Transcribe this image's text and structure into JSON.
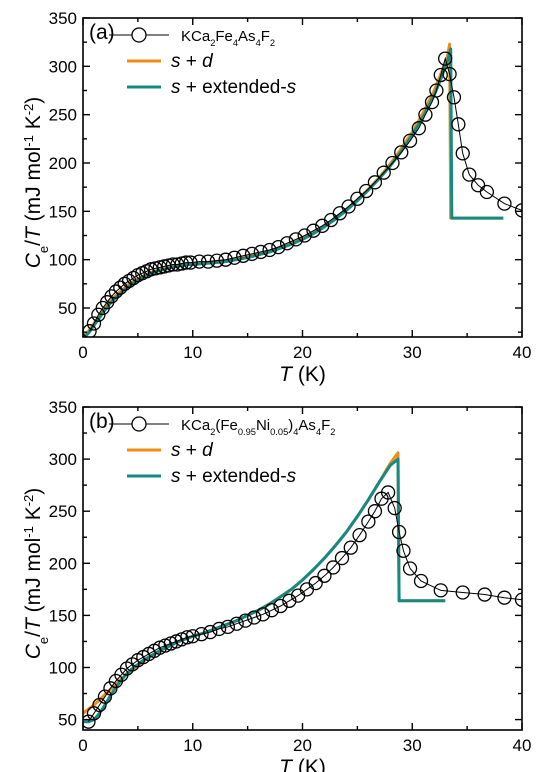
{
  "chart_data": [
    {
      "type": "line",
      "panel_label": "(a)",
      "xlabel": "T (K)",
      "ylabel": "Ce/T (mJ mol-1 K-2)",
      "xlim": [
        0,
        40
      ],
      "ylim": [
        20,
        350
      ],
      "xticks": [
        0,
        10,
        20,
        30,
        40
      ],
      "yticks": [
        50,
        100,
        150,
        200,
        250,
        300,
        350
      ],
      "legend_position": "top-left",
      "series": [
        {
          "name": "KCa2Fe4As4F2",
          "kind": "scatter-line",
          "color": "#000000",
          "x": [
            0.6,
            1.0,
            1.4,
            1.8,
            2.2,
            2.6,
            3.0,
            3.4,
            3.8,
            4.2,
            4.6,
            5.0,
            5.4,
            5.8,
            6.2,
            6.6,
            7.0,
            7.4,
            7.8,
            8.2,
            8.6,
            9.0,
            9.4,
            9.8,
            10.6,
            11.4,
            12.2,
            13.0,
            13.8,
            14.6,
            15.4,
            16.2,
            17.0,
            17.8,
            18.6,
            19.4,
            20.2,
            21.0,
            21.8,
            22.6,
            23.4,
            24.2,
            25.0,
            25.8,
            26.6,
            27.4,
            28.2,
            29.0,
            29.8,
            30.6,
            31.2,
            31.8,
            32.2,
            32.6,
            33.0,
            33.4,
            33.8,
            34.2,
            34.6,
            35.2,
            36.0,
            36.8,
            38.4,
            40.0
          ],
          "y": [
            26,
            34,
            43,
            50,
            56,
            62,
            67,
            71,
            75,
            78,
            81,
            84,
            86,
            88,
            90,
            91,
            92,
            93,
            94,
            95,
            95,
            96,
            97,
            97,
            98,
            98,
            99,
            100,
            102,
            104,
            106,
            108,
            110,
            113,
            117,
            121,
            125,
            130,
            135,
            141,
            148,
            155,
            163,
            171,
            180,
            190,
            200,
            211,
            223,
            236,
            250,
            263,
            275,
            291,
            308,
            292,
            268,
            240,
            210,
            188,
            177,
            170,
            158,
            151
          ]
        },
        {
          "name": "s + d",
          "kind": "line",
          "color": "#f08c14",
          "x": [
            0,
            0.5,
            1,
            1.5,
            2,
            2.5,
            3,
            3.5,
            4,
            4.5,
            5,
            5.5,
            6,
            6.5,
            7,
            7.5,
            8,
            8.5,
            9,
            9.5,
            10,
            11,
            12,
            13,
            14,
            15,
            16,
            17,
            18,
            19,
            20,
            21,
            22,
            23,
            24,
            25,
            26,
            27,
            28,
            29,
            30,
            31,
            32,
            32.6,
            33.2,
            33.4,
            33.5,
            34,
            35,
            36,
            37,
            38.3
          ],
          "y": [
            20,
            26,
            34,
            42,
            50,
            57,
            63,
            68,
            73,
            77,
            80,
            83,
            86,
            88,
            90,
            91,
            93,
            94,
            95,
            95,
            96,
            97,
            98,
            99,
            101,
            103,
            106,
            109,
            113,
            117,
            122,
            128,
            135,
            143,
            152,
            162,
            173,
            185,
            199,
            215,
            232,
            252,
            275,
            292,
            310,
            323,
            143,
            143,
            143,
            143,
            143,
            143
          ]
        },
        {
          "name": "s + extended-s",
          "kind": "line",
          "color": "#158a82",
          "x": [
            0,
            0.5,
            1,
            1.5,
            2,
            2.5,
            3,
            3.5,
            4,
            4.5,
            5,
            5.5,
            6,
            6.5,
            7,
            7.5,
            8,
            8.5,
            9,
            9.5,
            10,
            11,
            12,
            13,
            14,
            15,
            16,
            17,
            18,
            19,
            20,
            21,
            22,
            23,
            24,
            25,
            26,
            27,
            28,
            29,
            30,
            31,
            32,
            32.6,
            33.2,
            33.5,
            33.6,
            34,
            35,
            36,
            37,
            38.3
          ],
          "y": [
            18,
            24,
            32,
            40,
            48,
            55,
            61,
            66,
            71,
            75,
            79,
            82,
            85,
            87,
            89,
            90,
            92,
            93,
            94,
            95,
            95,
            96,
            97,
            98,
            100,
            102,
            105,
            108,
            112,
            116,
            121,
            127,
            134,
            142,
            151,
            161,
            172,
            184,
            197,
            212,
            229,
            248,
            270,
            287,
            305,
            318,
            143,
            143,
            143,
            143,
            143,
            143
          ]
        }
      ]
    },
    {
      "type": "line",
      "panel_label": "(b)",
      "xlabel": "T (K)",
      "ylabel": "Ce/T (mJ mol-1 K-2)",
      "xlim": [
        0,
        40
      ],
      "ylim": [
        40,
        350
      ],
      "xticks": [
        0,
        10,
        20,
        30,
        40
      ],
      "yticks": [
        50,
        100,
        150,
        200,
        250,
        300,
        350
      ],
      "legend_position": "top-left",
      "series": [
        {
          "name": "KCa2(Fe0.95Ni0.05)4As4F2",
          "kind": "scatter-line",
          "color": "#000000",
          "x": [
            0.5,
            1.0,
            1.5,
            2.0,
            2.5,
            3.0,
            3.5,
            4.0,
            4.5,
            5.0,
            5.5,
            6.0,
            6.5,
            7.0,
            7.5,
            8.0,
            8.5,
            9.0,
            9.5,
            10.0,
            10.8,
            11.6,
            12.4,
            13.2,
            14.0,
            14.8,
            15.6,
            16.4,
            17.2,
            18.0,
            18.8,
            19.6,
            20.4,
            21.2,
            22.0,
            22.8,
            23.6,
            24.4,
            25.2,
            26.0,
            26.6,
            27.2,
            27.8,
            28.4,
            28.8,
            29.2,
            29.8,
            30.8,
            32.6,
            34.6,
            36.6,
            38.4,
            40.0
          ],
          "y": [
            48,
            56,
            64,
            72,
            80,
            87,
            93,
            99,
            103,
            107,
            110,
            113,
            116,
            119,
            121,
            123,
            125,
            127,
            129,
            130,
            132,
            134,
            137,
            139,
            142,
            145,
            148,
            151,
            155,
            159,
            164,
            169,
            175,
            181,
            188,
            196,
            205,
            215,
            227,
            240,
            250,
            262,
            268,
            253,
            230,
            212,
            195,
            183,
            174,
            172,
            170,
            167,
            165
          ]
        },
        {
          "name": "s + d",
          "kind": "line",
          "color": "#f08c14",
          "x": [
            0,
            0.5,
            1,
            1.5,
            2,
            2.5,
            3,
            3.5,
            4,
            4.5,
            5,
            5.5,
            6,
            6.5,
            7,
            7.5,
            8,
            8.5,
            9,
            9.5,
            10,
            11,
            12,
            13,
            14,
            15,
            16,
            17,
            18,
            19,
            20,
            21,
            22,
            23,
            24,
            25,
            26,
            27,
            28,
            28.7,
            28.8,
            29,
            30,
            31,
            32,
            33
          ],
          "y": [
            56,
            60,
            64,
            69,
            74,
            79,
            84,
            89,
            94,
            98,
            102,
            106,
            110,
            113,
            116,
            119,
            121,
            124,
            126,
            128,
            130,
            133,
            137,
            141,
            145,
            150,
            155,
            161,
            168,
            175,
            184,
            194,
            205,
            217,
            230,
            245,
            261,
            278,
            296,
            306,
            164,
            164,
            164,
            164,
            164,
            164
          ]
        },
        {
          "name": "s + extended-s",
          "kind": "line",
          "color": "#158a82",
          "x": [
            0,
            0.5,
            1,
            1.5,
            2,
            2.5,
            3,
            3.5,
            4,
            4.5,
            5,
            5.5,
            6,
            6.5,
            7,
            7.5,
            8,
            8.5,
            9,
            9.5,
            10,
            11,
            12,
            13,
            14,
            15,
            16,
            17,
            18,
            19,
            20,
            21,
            22,
            23,
            24,
            25,
            26,
            27,
            28,
            28.7,
            28.8,
            29,
            30,
            31,
            32,
            33
          ],
          "y": [
            48,
            48,
            50,
            56,
            64,
            73,
            81,
            88,
            94,
            99,
            103,
            107,
            110,
            113,
            116,
            119,
            121,
            124,
            126,
            128,
            130,
            133,
            137,
            141,
            145,
            150,
            155,
            161,
            168,
            175,
            184,
            194,
            205,
            217,
            230,
            245,
            261,
            278,
            294,
            300,
            164,
            164,
            164,
            164,
            164,
            164
          ]
        }
      ]
    }
  ]
}
